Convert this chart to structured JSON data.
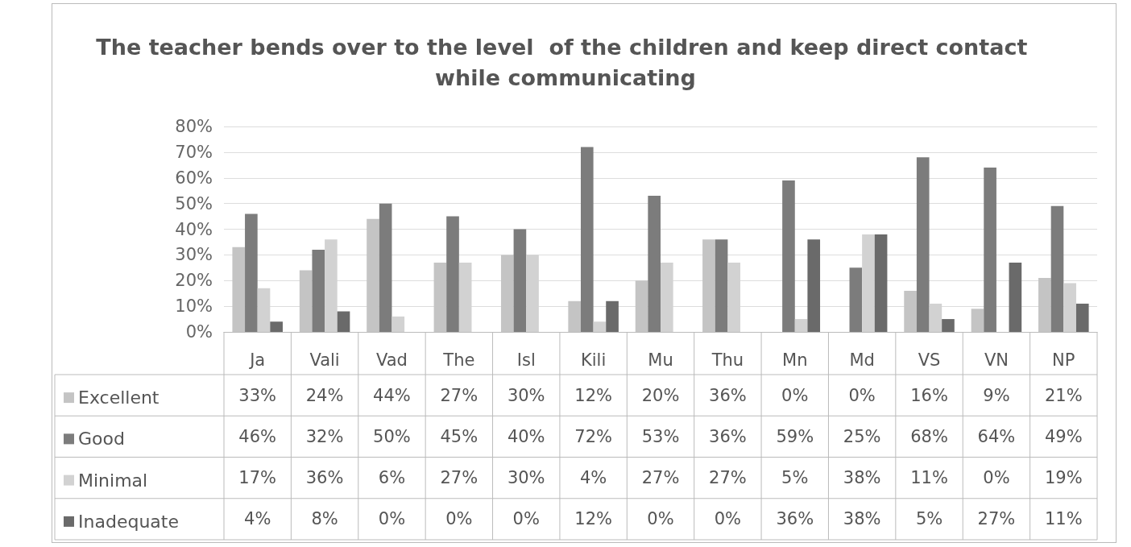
{
  "chart_data": {
    "type": "bar",
    "title": "The teacher bends over to the level  of the children and keep direct contact while communicating",
    "categories": [
      "Ja",
      "Vali",
      "Vad",
      "The",
      "Isl",
      "Kili",
      "Mu",
      "Thu",
      "Mn",
      "Md",
      "VS",
      "VN",
      "NP"
    ],
    "series": [
      {
        "name": "Excellent",
        "color": "#c4c4c4",
        "values": [
          33,
          24,
          44,
          27,
          30,
          12,
          20,
          36,
          0,
          0,
          16,
          9,
          21
        ],
        "value_labels": [
          "33%",
          "24%",
          "44%",
          "27%",
          "30%",
          "12%",
          "20%",
          "36%",
          "0%",
          "0%",
          "16%",
          "9%",
          "21%"
        ]
      },
      {
        "name": "Good",
        "color": "#7c7c7c",
        "values": [
          46,
          32,
          50,
          45,
          40,
          72,
          53,
          36,
          59,
          25,
          68,
          64,
          49
        ],
        "value_labels": [
          "46%",
          "32%",
          "50%",
          "45%",
          "40%",
          "72%",
          "53%",
          "36%",
          "59%",
          "25%",
          "68%",
          "64%",
          "49%"
        ]
      },
      {
        "name": "Minimal",
        "color": "#d2d2d2",
        "values": [
          17,
          36,
          6,
          27,
          30,
          4,
          27,
          27,
          5,
          38,
          11,
          0,
          19
        ],
        "value_labels": [
          "17%",
          "36%",
          "6%",
          "27%",
          "30%",
          "4%",
          "27%",
          "27%",
          "5%",
          "38%",
          "11%",
          "0%",
          "19%"
        ]
      },
      {
        "name": "Inadequate",
        "color": "#6a6a6a",
        "values": [
          4,
          8,
          0,
          0,
          0,
          12,
          0,
          0,
          36,
          38,
          5,
          27,
          11
        ],
        "value_labels": [
          "4%",
          "8%",
          "0%",
          "0%",
          "0%",
          "12%",
          "0%",
          "0%",
          "36%",
          "38%",
          "5%",
          "27%",
          "11%"
        ]
      }
    ],
    "ylim": [
      0,
      80
    ],
    "yticks": [
      {
        "value": 0,
        "label": "0%"
      },
      {
        "value": 10,
        "label": "10%"
      },
      {
        "value": 20,
        "label": "20%"
      },
      {
        "value": 30,
        "label": "30%"
      },
      {
        "value": 40,
        "label": "40%"
      },
      {
        "value": 50,
        "label": "50%"
      },
      {
        "value": 60,
        "label": "60%"
      },
      {
        "value": 70,
        "label": "70%"
      },
      {
        "value": 80,
        "label": "80%"
      }
    ],
    "grid": "y",
    "legend": "bottom"
  }
}
